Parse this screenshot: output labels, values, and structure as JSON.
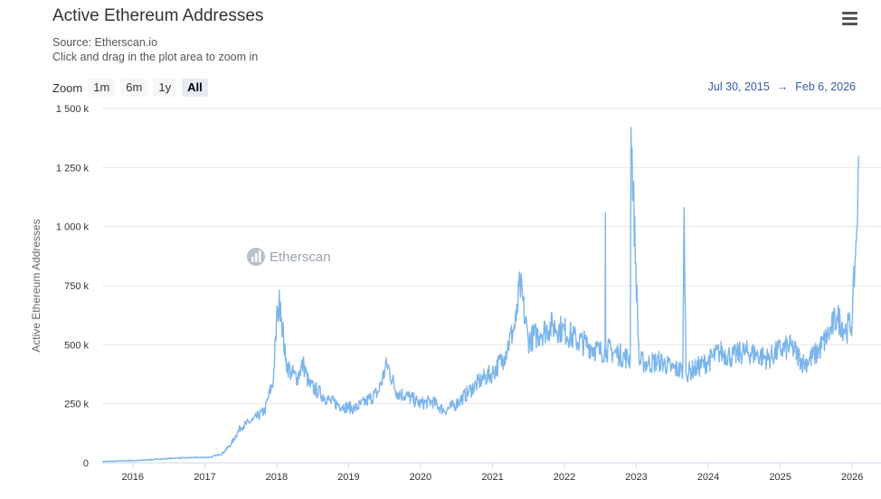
{
  "header": {
    "title": "Active Ethereum Addresses",
    "source": "Source: Etherscan.io",
    "hint": "Click and drag in the plot area to zoom in",
    "menu_icon": "hamburger-menu-icon"
  },
  "zoom": {
    "label": "Zoom",
    "buttons": [
      {
        "label": "1m",
        "active": false
      },
      {
        "label": "6m",
        "active": false
      },
      {
        "label": "1y",
        "active": false
      },
      {
        "label": "All",
        "active": true
      }
    ]
  },
  "range": {
    "from": "Jul 30, 2015",
    "arrow": "→",
    "to": "Feb 6, 2026"
  },
  "watermark": {
    "text": "Etherscan",
    "icon": "etherscan-logo-icon"
  },
  "colors": {
    "series": "#7cb5ec",
    "grid": "#e6e6e6",
    "accent": "#335cad"
  },
  "chart_data": {
    "type": "line",
    "title": "Active Ethereum Addresses",
    "subtitle": "Source: Etherscan.io",
    "ylabel": "Active Ethereum Addresses",
    "xlabel": "",
    "xlim": [
      "2015-07-30",
      "2026-02-06"
    ],
    "ylim": [
      0,
      1500000
    ],
    "y_ticks": [
      {
        "value": 0,
        "label": "0"
      },
      {
        "value": 250000,
        "label": "250 k"
      },
      {
        "value": 500000,
        "label": "500 k"
      },
      {
        "value": 750000,
        "label": "750 k"
      },
      {
        "value": 1000000,
        "label": "1 000 k"
      },
      {
        "value": 1250000,
        "label": "1 250 k"
      },
      {
        "value": 1500000,
        "label": "1 500 k"
      }
    ],
    "x_ticks": [
      {
        "value": "2016-01-01",
        "label": "2016"
      },
      {
        "value": "2017-01-01",
        "label": "2017"
      },
      {
        "value": "2018-01-01",
        "label": "2018"
      },
      {
        "value": "2019-01-01",
        "label": "2019"
      },
      {
        "value": "2020-01-01",
        "label": "2020"
      },
      {
        "value": "2021-01-01",
        "label": "2021"
      },
      {
        "value": "2022-01-01",
        "label": "2022"
      },
      {
        "value": "2023-01-01",
        "label": "2023"
      },
      {
        "value": "2024-01-01",
        "label": "2024"
      },
      {
        "value": "2025-01-01",
        "label": "2025"
      },
      {
        "value": "2026-01-01",
        "label": "2026"
      }
    ],
    "grid": true,
    "legend": "none",
    "series": [
      {
        "x": [
          "2015-08-01",
          "2015-11-01",
          "2016-02-01",
          "2016-05-01",
          "2016-08-01",
          "2016-11-01",
          "2017-02-01",
          "2017-04-01",
          "2017-05-15",
          "2017-07-01",
          "2017-09-01",
          "2017-11-01",
          "2017-12-15",
          "2018-01-05",
          "2018-01-20",
          "2018-02-15",
          "2018-03-15",
          "2018-04-15",
          "2018-05-15",
          "2018-06-15",
          "2018-08-01",
          "2018-10-01",
          "2018-12-01",
          "2019-02-01",
          "2019-04-01",
          "2019-06-01",
          "2019-07-15",
          "2019-09-01",
          "2019-11-01",
          "2020-01-01",
          "2020-03-01",
          "2020-05-01",
          "2020-07-01",
          "2020-09-01",
          "2020-11-01",
          "2021-01-01",
          "2021-03-01",
          "2021-05-01",
          "2021-05-20",
          "2021-07-01",
          "2021-09-01",
          "2021-11-01",
          "2022-01-01",
          "2022-03-01",
          "2022-05-01",
          "2022-07-01",
          "2022-08-01",
          "2022-10-01",
          "2022-12-01",
          "2022-12-05",
          "2023-01-15",
          "2023-03-01",
          "2023-05-01",
          "2023-07-01",
          "2023-08-25",
          "2023-09-01",
          "2023-09-10",
          "2023-11-01",
          "2024-01-01",
          "2024-03-01",
          "2024-05-01",
          "2024-07-01",
          "2024-09-01",
          "2024-11-01",
          "2025-01-01",
          "2025-03-01",
          "2025-05-01",
          "2025-07-01",
          "2025-09-01",
          "2025-10-15",
          "2025-12-01",
          "2026-01-01",
          "2026-01-15",
          "2026-01-25",
          "2026-02-06"
        ],
        "y": [
          5000,
          8000,
          10000,
          15000,
          20000,
          22000,
          24000,
          40000,
          80000,
          150000,
          180000,
          220000,
          350000,
          650000,
          680000,
          430000,
          380000,
          360000,
          420000,
          330000,
          300000,
          260000,
          240000,
          230000,
          260000,
          300000,
          420000,
          300000,
          280000,
          250000,
          260000,
          220000,
          250000,
          300000,
          350000,
          380000,
          450000,
          600000,
          760000,
          520000,
          550000,
          580000,
          560000,
          520000,
          500000,
          470000,
          480000,
          460000,
          440000,
          1420000,
          430000,
          420000,
          430000,
          400000,
          390000,
          1080000,
          380000,
          400000,
          430000,
          470000,
          450000,
          470000,
          460000,
          440000,
          480000,
          490000,
          420000,
          460000,
          540000,
          620000,
          560000,
          600000,
          850000,
          1000000,
          1300000
        ]
      }
    ],
    "annotations": [
      {
        "x": "2022-12-05",
        "y": 1420000
      },
      {
        "x": "2023-09-01",
        "y": 1080000
      },
      {
        "x": "2022-07-28",
        "y": 1060000
      },
      {
        "x": "2026-02-06",
        "y": 1300000
      }
    ]
  }
}
